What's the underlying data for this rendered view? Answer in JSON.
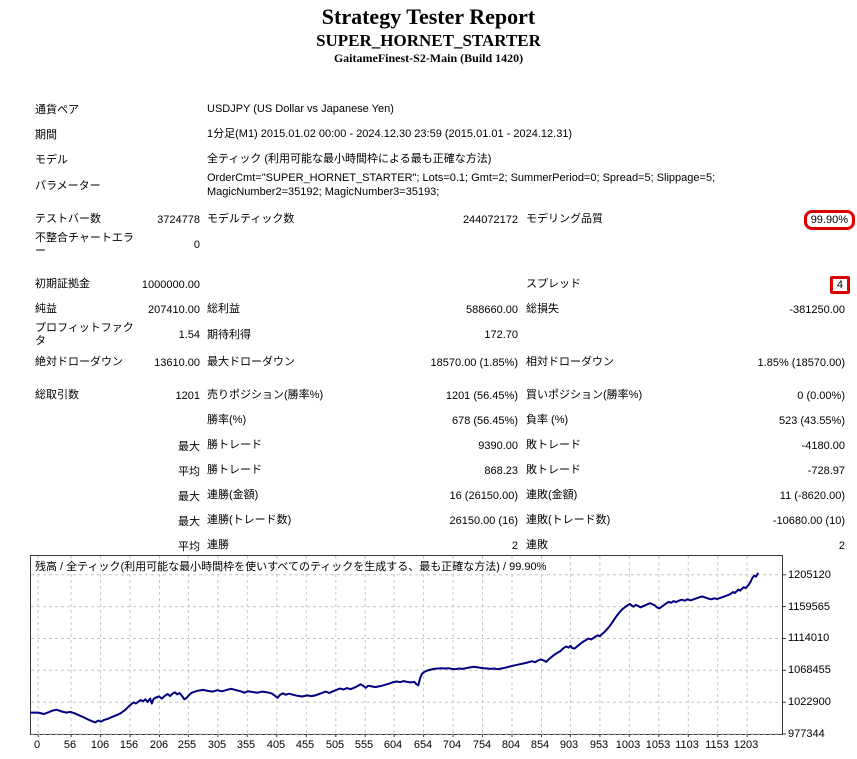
{
  "header": {
    "title": "Strategy Tester Report",
    "ea_name": "SUPER_HORNET_STARTER",
    "server": "GaitameFinest-S2-Main (Build 1420)"
  },
  "info_rows": [
    {
      "label": "通貨ペア",
      "value": "USDJPY (US Dollar vs Japanese Yen)"
    },
    {
      "label": "期間",
      "value": "1分足(M1) 2015.01.02 00:00 - 2024.12.30 23:59 (2015.01.01 - 2024.12.31)"
    },
    {
      "label": "モデル",
      "value": "全ティック (利用可能な最小時間枠による最も正確な方法)"
    },
    {
      "label": "パラメーター",
      "value": "OrderCmt=\"SUPER_HORNET_STARTER\"; Lots=0.1; Gmt=2; SummerPeriod=0; Spread=5; Slippage=5; MagicNumber2=35192; MagicNumber3=35193;"
    }
  ],
  "stat_rows": [
    {
      "l1": "テストバー数",
      "v1": "3724778",
      "l2": "モデルティック数",
      "v2": "244072172",
      "l3": "モデリング品質",
      "v3": "99.90%",
      "v3_box": "round",
      "gap": ""
    },
    {
      "l1": "不整合チャートエラー",
      "v1": "0",
      "l2": "",
      "v2": "",
      "l3": "",
      "v3": "",
      "v3_box": "",
      "gap": ""
    },
    {
      "l1": "初期証拠金",
      "v1": "1000000.00",
      "l2": "",
      "v2": "",
      "l3": "スプレッド",
      "v3": "4",
      "v3_box": "square",
      "gap": "gap14"
    },
    {
      "l1": "純益",
      "v1": "207410.00",
      "l2": "総利益",
      "v2": "588660.00",
      "l3": "総損失",
      "v3": "-381250.00",
      "v3_box": "",
      "gap": ""
    },
    {
      "l1": "プロフィットファクタ",
      "v1": "1.54",
      "l2": "期待利得",
      "v2": "172.70",
      "l3": "",
      "v3": "",
      "v3_box": "",
      "gap": ""
    },
    {
      "l1": "絶対ドローダウン",
      "v1": "13610.00",
      "l2": "最大ドローダウン",
      "v2": "18570.00 (1.85%)",
      "l3": "相対ドローダウン",
      "v3": "1.85% (18570.00)",
      "v3_box": "",
      "gap": "gap2"
    },
    {
      "l1": "総取引数",
      "v1": "1201",
      "l2": "売りポジション(勝率%)",
      "v2": "1201 (56.45%)",
      "l3": "買いポジション(勝率%)",
      "v3": "0 (0.00%)",
      "v3_box": "",
      "gap": "gap8"
    },
    {
      "l1": "",
      "v1": "",
      "l2": "勝率(%)",
      "v2": "678 (56.45%)",
      "l3": "負率 (%)",
      "v3": "523 (43.55%)",
      "v3_box": "",
      "gap": ""
    },
    {
      "l1": "",
      "v1": "最大",
      "l2": "勝トレード",
      "v2": "9390.00",
      "l3": "敗トレード",
      "v3": "-4180.00",
      "v3_box": "",
      "gap": ""
    },
    {
      "l1": "",
      "v1": "平均",
      "l2": "勝トレード",
      "v2": "868.23",
      "l3": "敗トレード",
      "v3": "-728.97",
      "v3_box": "",
      "gap": ""
    },
    {
      "l1": "",
      "v1": "最大",
      "l2": "連勝(金額)",
      "v2": "16 (26150.00)",
      "l3": "連敗(金額)",
      "v3": "11 (-8620.00)",
      "v3_box": "",
      "gap": ""
    },
    {
      "l1": "",
      "v1": "最大",
      "l2": "連勝(トレード数)",
      "v2": "26150.00 (16)",
      "l3": "連敗(トレード数)",
      "v3": "-10680.00 (10)",
      "v3_box": "",
      "gap": ""
    },
    {
      "l1": "",
      "v1": "平均",
      "l2": "連勝",
      "v2": "2",
      "l3": "連敗",
      "v3": "2",
      "v3_box": "",
      "gap": ""
    }
  ],
  "chart_data": {
    "type": "line",
    "title": "残高 / 全ティック(利用可能な最小時間枠を使いすべてのティックを生成する、最も正確な方法) / 99.90%",
    "line_color": "#000080",
    "grid_color": "#c6c6c6",
    "grid": "dashed",
    "legend_position": "none",
    "x_ticks": [
      0,
      56,
      106,
      156,
      206,
      255,
      305,
      355,
      405,
      455,
      505,
      555,
      604,
      654,
      704,
      754,
      804,
      854,
      903,
      953,
      1003,
      1053,
      1103,
      1153,
      1203
    ],
    "y_ticks": [
      1205120,
      1159565,
      1114010,
      1068455,
      1022900,
      977344
    ],
    "xlim": [
      -12,
      1262
    ],
    "ylim": [
      977344,
      1232000
    ],
    "series": [
      {
        "name": "残高",
        "points": [
          [
            0,
            1008000
          ],
          [
            10,
            1006000
          ],
          [
            18,
            1008500
          ],
          [
            25,
            1011000
          ],
          [
            32,
            1012000
          ],
          [
            40,
            1009500
          ],
          [
            48,
            1008000
          ],
          [
            55,
            1009000
          ],
          [
            62,
            1007000
          ],
          [
            70,
            1004000
          ],
          [
            78,
            1001000
          ],
          [
            85,
            998000
          ],
          [
            92,
            995500
          ],
          [
            97,
            994000
          ],
          [
            102,
            996500
          ],
          [
            107,
            995000
          ],
          [
            112,
            997500
          ],
          [
            118,
            999000
          ],
          [
            125,
            1001500
          ],
          [
            132,
            1004000
          ],
          [
            140,
            1007000
          ],
          [
            148,
            1012000
          ],
          [
            154,
            1017000
          ],
          [
            158,
            1020000
          ],
          [
            162,
            1022500
          ],
          [
            166,
            1021000
          ],
          [
            170,
            1023500
          ],
          [
            174,
            1026000
          ],
          [
            178,
            1024000
          ],
          [
            182,
            1027000
          ],
          [
            186,
            1023000
          ],
          [
            190,
            1028000
          ],
          [
            193,
            1021000
          ],
          [
            196,
            1027500
          ],
          [
            200,
            1029500
          ],
          [
            205,
            1031000
          ],
          [
            210,
            1028000
          ],
          [
            215,
            1032000
          ],
          [
            220,
            1034500
          ],
          [
            224,
            1031500
          ],
          [
            228,
            1035000
          ],
          [
            232,
            1037000
          ],
          [
            236,
            1034000
          ],
          [
            240,
            1036000
          ],
          [
            244,
            1032000
          ],
          [
            248,
            1027000
          ],
          [
            252,
            1029000
          ],
          [
            256,
            1033000
          ],
          [
            260,
            1036000
          ],
          [
            266,
            1038000
          ],
          [
            272,
            1039500
          ],
          [
            280,
            1040500
          ],
          [
            288,
            1039000
          ],
          [
            296,
            1038000
          ],
          [
            304,
            1040000
          ],
          [
            312,
            1038500
          ],
          [
            320,
            1040500
          ],
          [
            328,
            1042000
          ],
          [
            336,
            1040000
          ],
          [
            344,
            1038500
          ],
          [
            350,
            1036500
          ],
          [
            356,
            1038500
          ],
          [
            364,
            1037500
          ],
          [
            372,
            1036500
          ],
          [
            380,
            1038000
          ],
          [
            388,
            1037000
          ],
          [
            396,
            1035500
          ],
          [
            402,
            1032000
          ],
          [
            406,
            1029000
          ],
          [
            410,
            1033000
          ],
          [
            415,
            1035500
          ],
          [
            420,
            1033500
          ],
          [
            426,
            1035000
          ],
          [
            432,
            1033500
          ],
          [
            440,
            1032000
          ],
          [
            448,
            1031000
          ],
          [
            456,
            1032500
          ],
          [
            464,
            1031500
          ],
          [
            472,
            1033000
          ],
          [
            480,
            1035500
          ],
          [
            488,
            1038000
          ],
          [
            494,
            1036000
          ],
          [
            500,
            1038500
          ],
          [
            506,
            1040500
          ],
          [
            512,
            1042500
          ],
          [
            518,
            1041000
          ],
          [
            524,
            1043000
          ],
          [
            530,
            1041500
          ],
          [
            536,
            1043500
          ],
          [
            542,
            1046000
          ],
          [
            547,
            1048500
          ],
          [
            552,
            1046000
          ],
          [
            556,
            1043500
          ],
          [
            560,
            1046500
          ],
          [
            566,
            1045500
          ],
          [
            572,
            1044500
          ],
          [
            578,
            1045500
          ],
          [
            584,
            1046500
          ],
          [
            590,
            1048000
          ],
          [
            596,
            1049500
          ],
          [
            602,
            1051500
          ],
          [
            608,
            1052500
          ],
          [
            614,
            1051500
          ],
          [
            620,
            1053000
          ],
          [
            626,
            1052000
          ],
          [
            632,
            1051000
          ],
          [
            638,
            1052000
          ],
          [
            642,
            1048500
          ],
          [
            645,
            1047000
          ],
          [
            648,
            1057000
          ],
          [
            651,
            1063000
          ],
          [
            655,
            1066000
          ],
          [
            660,
            1068000
          ],
          [
            666,
            1069500
          ],
          [
            672,
            1070500
          ],
          [
            678,
            1071000
          ],
          [
            684,
            1071500
          ],
          [
            690,
            1071000
          ],
          [
            696,
            1071500
          ],
          [
            702,
            1070500
          ],
          [
            708,
            1070000
          ],
          [
            714,
            1071000
          ],
          [
            720,
            1070500
          ],
          [
            726,
            1071500
          ],
          [
            732,
            1072500
          ],
          [
            738,
            1073500
          ],
          [
            744,
            1073000
          ],
          [
            750,
            1072000
          ],
          [
            756,
            1071500
          ],
          [
            762,
            1071000
          ],
          [
            768,
            1070500
          ],
          [
            774,
            1071000
          ],
          [
            780,
            1070000
          ],
          [
            786,
            1071000
          ],
          [
            792,
            1072000
          ],
          [
            798,
            1073500
          ],
          [
            806,
            1075000
          ],
          [
            814,
            1076500
          ],
          [
            822,
            1078000
          ],
          [
            830,
            1079500
          ],
          [
            838,
            1081500
          ],
          [
            843,
            1080000
          ],
          [
            848,
            1082500
          ],
          [
            853,
            1084000
          ],
          [
            858,
            1082500
          ],
          [
            862,
            1080500
          ],
          [
            866,
            1084000
          ],
          [
            871,
            1087500
          ],
          [
            876,
            1091000
          ],
          [
            881,
            1093500
          ],
          [
            886,
            1096000
          ],
          [
            891,
            1100000
          ],
          [
            896,
            1102500
          ],
          [
            900,
            1101000
          ],
          [
            903,
            1103500
          ],
          [
            906,
            1100500
          ],
          [
            910,
            1099500
          ],
          [
            915,
            1103000
          ],
          [
            920,
            1106500
          ],
          [
            925,
            1109500
          ],
          [
            930,
            1112000
          ],
          [
            934,
            1114000
          ],
          [
            938,
            1112500
          ],
          [
            942,
            1114500
          ],
          [
            946,
            1117000
          ],
          [
            950,
            1118500
          ],
          [
            953,
            1117000
          ],
          [
            956,
            1120000
          ],
          [
            960,
            1122500
          ],
          [
            964,
            1126000
          ],
          [
            968,
            1130000
          ],
          [
            972,
            1134500
          ],
          [
            976,
            1139500
          ],
          [
            980,
            1144500
          ],
          [
            984,
            1149000
          ],
          [
            988,
            1153000
          ],
          [
            992,
            1156500
          ],
          [
            996,
            1159000
          ],
          [
            1000,
            1161500
          ],
          [
            1004,
            1163500
          ],
          [
            1007,
            1161000
          ],
          [
            1010,
            1159500
          ],
          [
            1014,
            1162000
          ],
          [
            1018,
            1160500
          ],
          [
            1022,
            1158500
          ],
          [
            1026,
            1160000
          ],
          [
            1030,
            1161500
          ],
          [
            1034,
            1163000
          ],
          [
            1038,
            1164500
          ],
          [
            1042,
            1163000
          ],
          [
            1046,
            1161500
          ],
          [
            1050,
            1158500
          ],
          [
            1054,
            1157000
          ],
          [
            1058,
            1159500
          ],
          [
            1062,
            1162000
          ],
          [
            1066,
            1164500
          ],
          [
            1070,
            1166500
          ],
          [
            1074,
            1165000
          ],
          [
            1078,
            1167500
          ],
          [
            1082,
            1166000
          ],
          [
            1087,
            1168000
          ],
          [
            1092,
            1169500
          ],
          [
            1097,
            1168000
          ],
          [
            1102,
            1170000
          ],
          [
            1107,
            1168500
          ],
          [
            1112,
            1170000
          ],
          [
            1117,
            1171500
          ],
          [
            1122,
            1173000
          ],
          [
            1127,
            1174000
          ],
          [
            1132,
            1172500
          ],
          [
            1137,
            1171000
          ],
          [
            1142,
            1170000
          ],
          [
            1147,
            1171500
          ],
          [
            1152,
            1170500
          ],
          [
            1157,
            1172000
          ],
          [
            1162,
            1173500
          ],
          [
            1167,
            1175000
          ],
          [
            1172,
            1176500
          ],
          [
            1176,
            1178500
          ],
          [
            1179,
            1180500
          ],
          [
            1182,
            1179000
          ],
          [
            1185,
            1181500
          ],
          [
            1188,
            1184000
          ],
          [
            1191,
            1182500
          ],
          [
            1194,
            1185000
          ],
          [
            1197,
            1187500
          ],
          [
            1200,
            1186000
          ],
          [
            1203,
            1188500
          ],
          [
            1206,
            1191500
          ],
          [
            1209,
            1196000
          ],
          [
            1212,
            1201000
          ],
          [
            1215,
            1204000
          ],
          [
            1218,
            1202500
          ],
          [
            1221,
            1207000
          ]
        ]
      }
    ]
  }
}
